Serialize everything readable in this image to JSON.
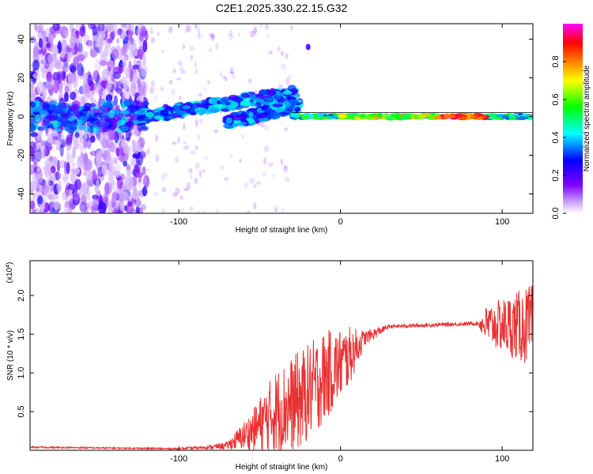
{
  "title": "C2E1.2025.330.22.15.G32",
  "chart_data": [
    {
      "type": "heatmap",
      "name": "spectrogram",
      "xlabel": "Height of straight line (km)",
      "ylabel": "Frequency (Hz)",
      "xlim": [
        -192,
        119
      ],
      "ylim": [
        -50,
        48
      ],
      "xticks": [
        "-100",
        "0",
        "100"
      ],
      "yticks": [
        "-40",
        "-20",
        "0",
        "20",
        "40"
      ],
      "colorbar": {
        "label": "Normalized spectral amplitude",
        "ticks": [
          "0.0",
          "0.2",
          "0.4",
          "0.6",
          "0.8"
        ],
        "range": [
          0,
          1
        ],
        "colors": [
          "#ffffff",
          "#8000ff",
          "#0000ff",
          "#00ffff",
          "#00ff00",
          "#ffff00",
          "#ff8000",
          "#ff0000",
          "#ff00ff"
        ]
      },
      "features": [
        {
          "name": "broadband noise",
          "x_range": [
            -192,
            -120
          ],
          "y_range": [
            -50,
            48
          ],
          "amplitude": 0.1
        },
        {
          "name": "rising branch",
          "x_start": -125,
          "x_end": -28,
          "y_start": 0,
          "y_end": 12,
          "amplitude": 0.35
        },
        {
          "name": "late rising branch",
          "x_start": -70,
          "x_end": -25,
          "y_start": -3,
          "y_end": 6,
          "amplitude": 0.35
        },
        {
          "name": "fine-structure line",
          "x_range": [
            -30,
            119
          ],
          "y": 0,
          "amplitude": 0.85
        }
      ]
    },
    {
      "type": "line",
      "name": "snr",
      "xlabel": "Height of straight line (km)",
      "ylabel": "SNR (10 * v/v)",
      "multiplier": "(x10",
      "multiplier_exp": "4",
      "multiplier_close": ")",
      "xlim": [
        -192,
        119
      ],
      "ylim": [
        0,
        2.45
      ],
      "xticks": [
        "-100",
        "0",
        "100"
      ],
      "yticks": [
        "0.5",
        "1.0",
        "1.5",
        "2.0"
      ],
      "color": "#e83232",
      "envelope": [
        {
          "x": -192,
          "base": 0.04,
          "spread": 0.02
        },
        {
          "x": -100,
          "base": 0.02,
          "spread": 0.02
        },
        {
          "x": -82,
          "base": 0.04,
          "spread": 0.05
        },
        {
          "x": -70,
          "base": 0.06,
          "spread": 0.1
        },
        {
          "x": -55,
          "base": 0.25,
          "spread": 0.5
        },
        {
          "x": -40,
          "base": 0.5,
          "spread": 1.1
        },
        {
          "x": -25,
          "base": 0.65,
          "spread": 1.3
        },
        {
          "x": -10,
          "base": 0.95,
          "spread": 1.2
        },
        {
          "x": 5,
          "base": 1.2,
          "spread": 0.8
        },
        {
          "x": 15,
          "base": 1.45,
          "spread": 0.2
        },
        {
          "x": 30,
          "base": 1.6,
          "spread": 0.05
        },
        {
          "x": 85,
          "base": 1.64,
          "spread": 0.05
        },
        {
          "x": 90,
          "base": 1.62,
          "spread": 0.5
        },
        {
          "x": 119,
          "base": 1.6,
          "spread": 1.1
        }
      ]
    }
  ]
}
